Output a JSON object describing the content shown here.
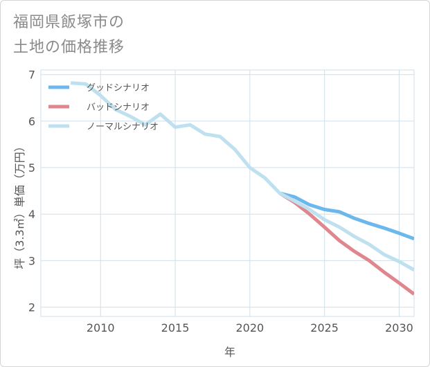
{
  "title_lines": [
    "福岡県飯塚市の",
    "土地の価格推移"
  ],
  "colors": {
    "good": "#6cb8ec",
    "bad": "#e0868e",
    "normal": "#bfe0ef",
    "grid": "#cfdfe9",
    "axis_text": "#555555"
  },
  "chart_data": {
    "type": "line",
    "title": "福岡県飯塚市の土地の価格推移",
    "xlabel": "年",
    "ylabel": "坪（3.3㎡）単価（万円）",
    "xlim": [
      2006,
      2031
    ],
    "ylim": [
      1.8,
      7.1
    ],
    "xticks": [
      2010,
      2015,
      2020,
      2025,
      2030
    ],
    "yticks": [
      2,
      3,
      4,
      5,
      6,
      7
    ],
    "legend_position": "top-left",
    "grid": true,
    "series": [
      {
        "name": "グッドシナリオ",
        "key": "good",
        "x": [
          2022,
          2023,
          2024,
          2025,
          2026,
          2027,
          2028,
          2029,
          2030,
          2031
        ],
        "values": [
          4.45,
          4.37,
          4.2,
          4.1,
          4.05,
          3.91,
          3.8,
          3.7,
          3.59,
          3.47
        ]
      },
      {
        "name": "バッドシナリオ",
        "key": "bad",
        "x": [
          2022,
          2023,
          2024,
          2025,
          2026,
          2027,
          2028,
          2029,
          2030,
          2031
        ],
        "values": [
          4.45,
          4.25,
          4.0,
          3.72,
          3.43,
          3.2,
          3.0,
          2.75,
          2.52,
          2.28
        ]
      },
      {
        "name": "ノーマルシナリオ",
        "key": "normal",
        "x": [
          2008,
          2009,
          2010,
          2011,
          2012,
          2013,
          2014,
          2015,
          2016,
          2017,
          2018,
          2019,
          2020,
          2021,
          2022,
          2023,
          2024,
          2025,
          2026,
          2027,
          2028,
          2029,
          2030,
          2031
        ],
        "values": [
          6.82,
          6.8,
          6.55,
          6.25,
          6.1,
          5.92,
          6.15,
          5.87,
          5.92,
          5.72,
          5.67,
          5.39,
          5.0,
          4.78,
          4.45,
          4.28,
          4.1,
          3.88,
          3.72,
          3.52,
          3.35,
          3.13,
          2.98,
          2.8
        ]
      }
    ]
  }
}
